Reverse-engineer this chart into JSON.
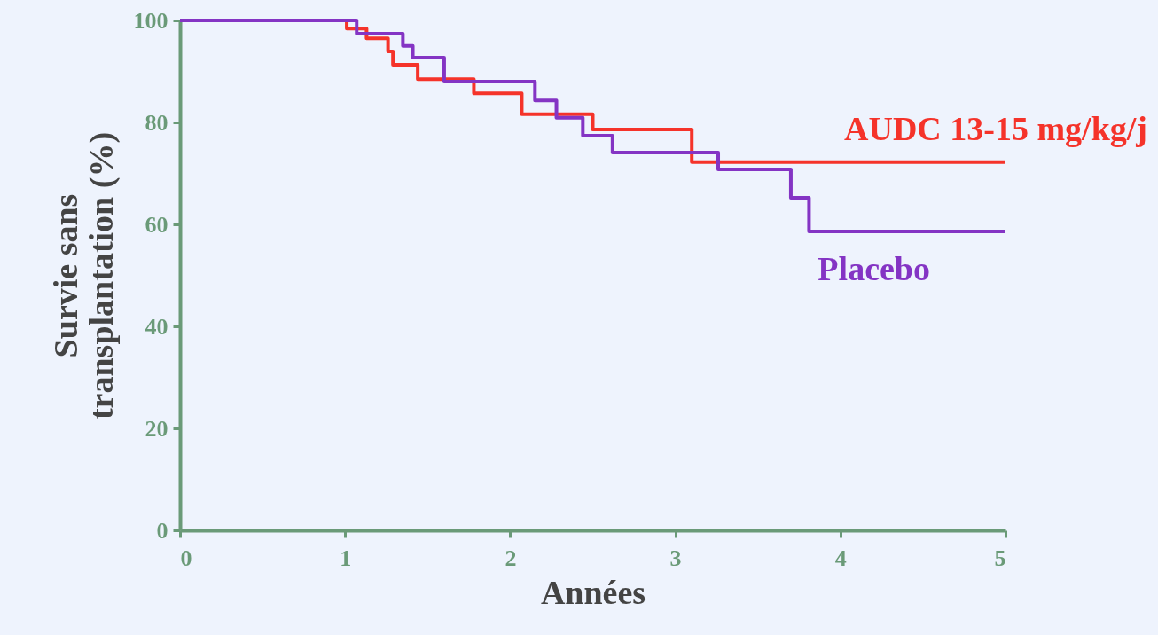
{
  "chart_data": {
    "type": "step",
    "xlabel": "Années",
    "ylabel": "Survie sans transplantation (%)",
    "xlim": [
      0,
      5
    ],
    "ylim": [
      0,
      100
    ],
    "xticks": [
      0,
      1,
      2,
      3,
      4,
      5
    ],
    "yticks": [
      0,
      20,
      40,
      60,
      80,
      100
    ],
    "grid": false,
    "legend": false,
    "marker": "none",
    "line_style": "solid",
    "series": [
      {
        "name": "AUDC 13-15 mg/kg/j",
        "color": "#f5332a",
        "x": [
          0,
          1.01,
          1.13,
          1.26,
          1.29,
          1.44,
          1.78,
          2.07,
          2.5,
          3.1,
          5
        ],
        "values": [
          100,
          98.4,
          96.5,
          93.9,
          91.3,
          88.5,
          85.7,
          81.6,
          78.6,
          72.2,
          72.2
        ]
      },
      {
        "name": "Placebo",
        "color": "#8434c4",
        "x": [
          0,
          1.07,
          1.35,
          1.41,
          1.6,
          2.15,
          2.28,
          2.44,
          2.62,
          3.26,
          3.7,
          3.81,
          5
        ],
        "values": [
          100,
          97.4,
          95,
          92.7,
          88,
          84.3,
          80.9,
          77.4,
          74.1,
          70.8,
          65.2,
          58.6,
          58.6
        ]
      }
    ]
  }
}
